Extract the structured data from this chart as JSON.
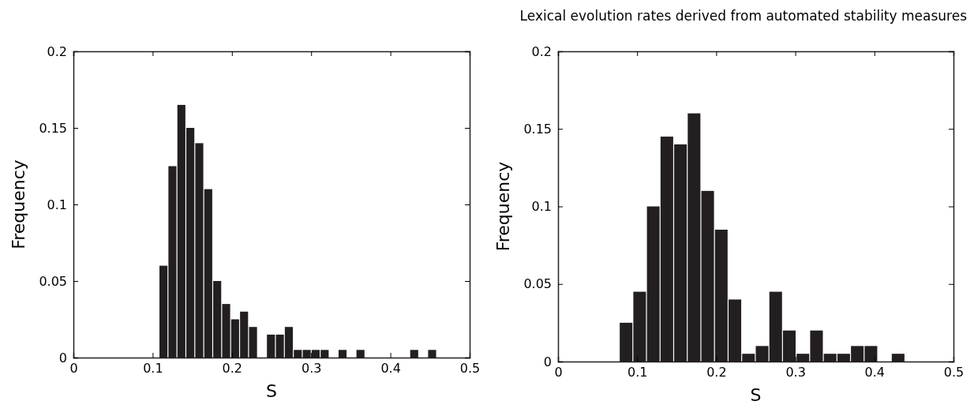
{
  "chart_data": [
    {
      "type": "histogram",
      "xlabel": "S",
      "ylabel": "Frequency",
      "color": "#231f20",
      "bins": [
        0.108,
        0.1193,
        0.1306,
        0.1419,
        0.1532,
        0.1645,
        0.1758,
        0.1871,
        0.1984,
        0.2097,
        0.221,
        0.2323,
        0.2436,
        0.2549,
        0.2662,
        0.2775,
        0.2888,
        0.3001,
        0.3114,
        0.3227,
        0.334,
        0.3453,
        0.3566,
        0.3679,
        0.3792,
        0.3905,
        0.4018,
        0.4131,
        0.4244,
        0.4357,
        0.447,
        0.4583
      ],
      "values": [
        0.06,
        0.125,
        0.165,
        0.15,
        0.14,
        0.11,
        0.05,
        0.035,
        0.025,
        0.03,
        0.02,
        0,
        0.015,
        0.015,
        0.02,
        0.005,
        0.005,
        0.005,
        0.005,
        0,
        0.005,
        0,
        0.005,
        0,
        0,
        0,
        0,
        0,
        0.005,
        0,
        0.005
      ],
      "xlim": [
        0,
        0.5
      ],
      "xticks": [
        0,
        0.1,
        0.2,
        0.3,
        0.4,
        0.5
      ],
      "ylim": [
        0,
        0.2
      ],
      "yticks": [
        0,
        0.05,
        0.1,
        0.15,
        0.2
      ],
      "grid": false
    },
    {
      "type": "histogram",
      "xlabel": "S",
      "ylabel": "Frequency",
      "color": "#231f20",
      "annotations": [
        "Lexical evolution rates derived from automated stability measures"
      ],
      "bins": [
        0.0774,
        0.0946,
        0.1118,
        0.129,
        0.1462,
        0.1634,
        0.1806,
        0.1978,
        0.215,
        0.2322,
        0.2494,
        0.2666,
        0.2838,
        0.301,
        0.3182,
        0.3354,
        0.3526,
        0.3698,
        0.387,
        0.4042,
        0.4214,
        0.4386
      ],
      "values": [
        0.025,
        0.045,
        0.1,
        0.145,
        0.14,
        0.16,
        0.11,
        0.085,
        0.04,
        0.005,
        0.01,
        0.045,
        0.02,
        0.005,
        0.02,
        0.005,
        0.005,
        0.01,
        0.01,
        0,
        0.005
      ],
      "xlim": [
        0,
        0.5
      ],
      "xticks": [
        0,
        0.1,
        0.2,
        0.3,
        0.4,
        0.5
      ],
      "ylim": [
        0,
        0.2
      ],
      "yticks": [
        0,
        0.05,
        0.1,
        0.15,
        0.2
      ],
      "grid": false
    }
  ]
}
